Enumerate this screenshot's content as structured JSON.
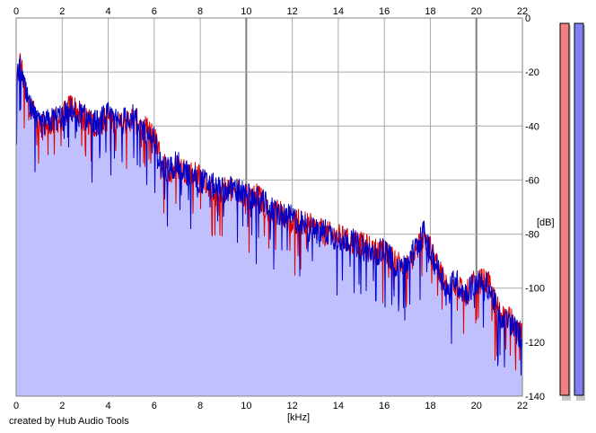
{
  "chart_data": {
    "type": "area",
    "title": "",
    "xlabel": "[kHz]",
    "ylabel": "[dB]",
    "xlim": [
      0,
      22
    ],
    "ylim": [
      -140,
      0
    ],
    "x_ticks": [
      "0",
      "2",
      "4",
      "6",
      "8",
      "10",
      "12",
      "14",
      "16",
      "18",
      "20",
      "22"
    ],
    "y_ticks": [
      "0",
      "-20",
      "-40",
      "-60",
      "-80",
      "-100",
      "-120",
      "-140"
    ],
    "grid": true,
    "legend": "none",
    "series": [
      {
        "color": "#e00000",
        "x": [
          0,
          0.1,
          0.2,
          0.3,
          0.5,
          0.8,
          1.0,
          1.5,
          2.0,
          2.4,
          3.0,
          3.5,
          4.0,
          4.5,
          5.0,
          5.5,
          6.0,
          6.3,
          6.6,
          7.0,
          7.5,
          8.0,
          8.5,
          9.0,
          9.5,
          10.0,
          10.5,
          11.0,
          11.5,
          12.0,
          12.5,
          13.0,
          13.5,
          14.0,
          14.5,
          15.0,
          15.5,
          16.0,
          16.5,
          17.0,
          17.5,
          17.7,
          18.0,
          18.5,
          18.8,
          19.0,
          19.5,
          20.0,
          20.5,
          21.0,
          21.5,
          22.0
        ],
        "values": [
          -28,
          -18,
          -16,
          -22,
          -30,
          -36,
          -41,
          -39,
          -37,
          -32,
          -38,
          -40,
          -37,
          -40,
          -37,
          -40,
          -44,
          -53,
          -57,
          -55,
          -57,
          -59,
          -63,
          -63,
          -64,
          -65,
          -66,
          -71,
          -72,
          -75,
          -76,
          -78,
          -80,
          -81,
          -83,
          -84,
          -86,
          -87,
          -90,
          -92,
          -84,
          -80,
          -86,
          -95,
          -101,
          -97,
          -103,
          -97,
          -98,
          -109,
          -112,
          -118
        ]
      },
      {
        "color": "#0000c8",
        "x": [
          0,
          0.1,
          0.2,
          0.3,
          0.5,
          0.8,
          1.0,
          1.5,
          2.0,
          2.4,
          3.0,
          3.5,
          4.0,
          4.5,
          5.0,
          5.5,
          6.0,
          6.3,
          6.6,
          7.0,
          7.5,
          8.0,
          8.5,
          9.0,
          9.5,
          10.0,
          10.5,
          11.0,
          11.5,
          12.0,
          12.5,
          13.0,
          13.5,
          14.0,
          14.5,
          15.0,
          15.5,
          16.0,
          16.5,
          17.0,
          17.5,
          17.7,
          18.0,
          18.5,
          18.8,
          19.0,
          19.5,
          20.0,
          20.5,
          21.0,
          21.5,
          22.0
        ],
        "values": [
          -27,
          -20,
          -17,
          -24,
          -31,
          -37,
          -40,
          -38,
          -36,
          -34,
          -37,
          -39,
          -36,
          -39,
          -36,
          -41,
          -45,
          -55,
          -56,
          -54,
          -58,
          -60,
          -62,
          -64,
          -63,
          -66,
          -67,
          -70,
          -73,
          -74,
          -77,
          -79,
          -79,
          -82,
          -82,
          -85,
          -87,
          -86,
          -91,
          -91,
          -83,
          -79,
          -87,
          -96,
          -102,
          -96,
          -102,
          -98,
          -99,
          -110,
          -113,
          -119
        ]
      }
    ]
  },
  "credit": "created by Hub Audio Tools",
  "level_meters": [
    {
      "color": "#f08080"
    },
    {
      "color": "#8080f0"
    }
  ],
  "colors": {
    "fill": "#c0c0ff",
    "grid": "#a8a8a8",
    "grid_major": "#808080"
  }
}
